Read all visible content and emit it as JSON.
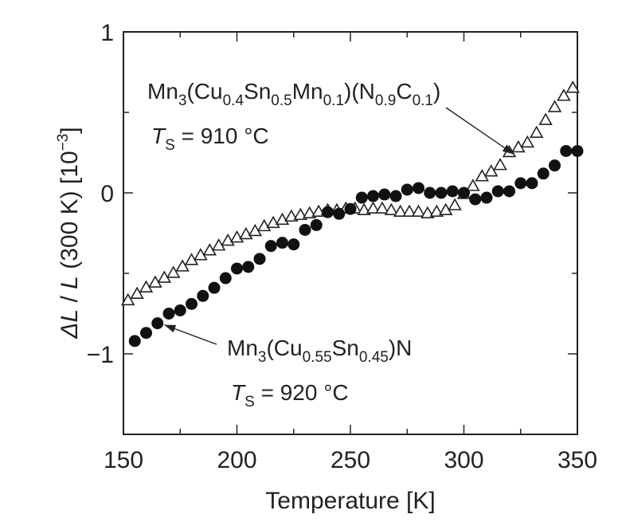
{
  "chart_data": {
    "type": "scatter",
    "xlabel": "Temperature [K]",
    "ylabel": {
      "delta": "Δ",
      "L1": "L",
      "slash": " / ",
      "L2": "L",
      "rest": " (300 K) [10",
      "exp": "−3",
      "close": "]"
    },
    "xlim": [
      150,
      350
    ],
    "ylim": [
      -1.5,
      1
    ],
    "x_ticks": [
      150,
      200,
      250,
      300,
      350
    ],
    "x_tick_labels": [
      "150",
      "200",
      "250",
      "300",
      "350"
    ],
    "y_ticks": [
      1,
      0,
      -1
    ],
    "y_tick_labels": [
      "1",
      "0",
      "−1"
    ],
    "grid": false,
    "series": [
      {
        "marker": "open-triangle",
        "color": "#222222",
        "x": [
          152,
          156,
          160,
          164,
          168,
          172,
          176,
          180,
          184,
          188,
          192,
          196,
          200,
          204,
          208,
          212,
          216,
          220,
          224,
          228,
          232,
          236,
          240,
          244,
          248,
          252,
          256,
          260,
          264,
          268,
          272,
          276,
          280,
          284,
          288,
          292,
          296,
          300,
          304,
          308,
          312,
          316,
          320,
          324,
          328,
          332,
          336,
          340,
          344,
          348
        ],
        "y": [
          -0.67,
          -0.63,
          -0.59,
          -0.56,
          -0.53,
          -0.5,
          -0.46,
          -0.42,
          -0.39,
          -0.36,
          -0.33,
          -0.3,
          -0.28,
          -0.26,
          -0.24,
          -0.21,
          -0.19,
          -0.17,
          -0.15,
          -0.14,
          -0.13,
          -0.12,
          -0.11,
          -0.11,
          -0.1,
          -0.1,
          -0.11,
          -0.1,
          -0.1,
          -0.11,
          -0.12,
          -0.12,
          -0.12,
          -0.13,
          -0.12,
          -0.11,
          -0.08,
          -0.01,
          0.04,
          0.1,
          0.13,
          0.17,
          0.25,
          0.28,
          0.31,
          0.37,
          0.45,
          0.53,
          0.6,
          0.65
        ]
      },
      {
        "marker": "filled-circle",
        "color": "#111111",
        "x": [
          155,
          160,
          165,
          170,
          175,
          180,
          185,
          190,
          195,
          200,
          205,
          210,
          215,
          220,
          225,
          230,
          235,
          240,
          245,
          250,
          255,
          260,
          265,
          270,
          275,
          280,
          285,
          290,
          295,
          300,
          305,
          310,
          315,
          320,
          325,
          330,
          335,
          340,
          345,
          350
        ],
        "y": [
          -0.92,
          -0.87,
          -0.81,
          -0.75,
          -0.73,
          -0.69,
          -0.64,
          -0.59,
          -0.53,
          -0.47,
          -0.46,
          -0.41,
          -0.33,
          -0.31,
          -0.32,
          -0.23,
          -0.2,
          -0.12,
          -0.13,
          -0.1,
          -0.03,
          -0.02,
          -0.01,
          -0.02,
          0.02,
          0.03,
          0,
          0,
          0.01,
          0,
          -0.04,
          -0.03,
          0.01,
          0.01,
          0.06,
          0.06,
          0.12,
          0.17,
          0.26,
          0.26
        ]
      }
    ],
    "annotations": [
      {
        "parts": [
          [
            "Mn",
            ""
          ],
          [
            "3",
            "sub"
          ],
          [
            "(Cu",
            ""
          ],
          [
            "0.4",
            "sub"
          ],
          [
            "Sn",
            ""
          ],
          [
            "0.5",
            "sub"
          ],
          [
            "Mn",
            ""
          ],
          [
            "0.1",
            "sub"
          ],
          [
            ")(N",
            ""
          ],
          [
            "0.9",
            "sub"
          ],
          [
            "C",
            ""
          ],
          [
            "0.1",
            "sub"
          ],
          [
            ")",
            ""
          ]
        ],
        "ts_label": "T",
        "ts_sub": "S",
        "ts_value": " = 910 °C",
        "arrow_to": [
          322,
          0.24
        ]
      },
      {
        "parts": [
          [
            "Mn",
            ""
          ],
          [
            "3",
            "sub"
          ],
          [
            "(Cu",
            ""
          ],
          [
            "0.55",
            "sub"
          ],
          [
            "Sn",
            ""
          ],
          [
            "0.45",
            "sub"
          ],
          [
            ")N",
            ""
          ]
        ],
        "ts_label": "T",
        "ts_sub": "S",
        "ts_value": " = 920 °C",
        "arrow_to": [
          168,
          -0.82
        ]
      }
    ]
  }
}
